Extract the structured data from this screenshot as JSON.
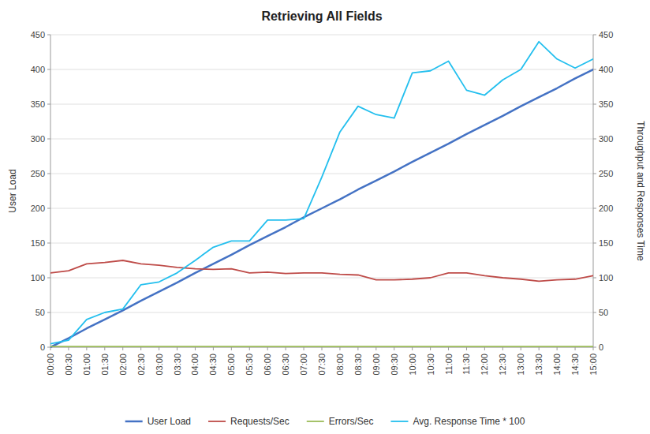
{
  "chart_data": {
    "type": "line",
    "title": "Retrieving All Fields",
    "ylabel": "User Load",
    "y2label": "Throughput and Responses Time",
    "categories": [
      "00:00",
      "00:30",
      "01:00",
      "01:30",
      "02:00",
      "02:30",
      "03:00",
      "03:30",
      "04:00",
      "04:30",
      "05:00",
      "05:30",
      "06:00",
      "06:30",
      "07:00",
      "07:30",
      "08:00",
      "08:30",
      "09:00",
      "09:30",
      "10:00",
      "10:30",
      "11:00",
      "11:30",
      "12:00",
      "12:30",
      "13:00",
      "13:30",
      "14:00",
      "14:30",
      "15:00"
    ],
    "series": [
      {
        "name": "User Load",
        "color": "#4472C4",
        "values": [
          0,
          13,
          27,
          40,
          53,
          67,
          80,
          93,
          107,
          120,
          133,
          147,
          160,
          173,
          187,
          200,
          213,
          227,
          240,
          253,
          267,
          280,
          293,
          307,
          320,
          333,
          347,
          360,
          373,
          387,
          400
        ]
      },
      {
        "name": "Requests/Sec",
        "color": "#BE4B48",
        "axis": "y2",
        "values": [
          107,
          110,
          120,
          122,
          125,
          120,
          118,
          115,
          113,
          112,
          113,
          107,
          108,
          106,
          107,
          107,
          105,
          104,
          97,
          97,
          98,
          100,
          107,
          107,
          103,
          100,
          98,
          95,
          97,
          98,
          103
        ]
      },
      {
        "name": "Errors/Sec",
        "color": "#9BBB59",
        "values": [
          1,
          1,
          1,
          1,
          1,
          1,
          1,
          1,
          1,
          1,
          1,
          1,
          1,
          1,
          1,
          1,
          1,
          1,
          1,
          1,
          1,
          1,
          1,
          1,
          1,
          1,
          1,
          1,
          1,
          1,
          1
        ]
      },
      {
        "name": "Avg. Response Time * 100",
        "color": "#23BFEE",
        "axis": "y2",
        "values": [
          5,
          10,
          40,
          50,
          55,
          90,
          94,
          107,
          125,
          144,
          153,
          153,
          183,
          183,
          185,
          245,
          310,
          347,
          335,
          330,
          395,
          398,
          412,
          370,
          363,
          385,
          400,
          440,
          415,
          402,
          415
        ]
      }
    ],
    "ylim": [
      0,
      450
    ],
    "yticks": [
      0,
      50,
      100,
      150,
      200,
      250,
      300,
      350,
      400,
      450
    ],
    "y2lim": [
      0,
      450
    ],
    "y2ticks": [
      0,
      50,
      100,
      150,
      200,
      250,
      300,
      350,
      400,
      450
    ],
    "grid": true,
    "legend": "bottom"
  }
}
